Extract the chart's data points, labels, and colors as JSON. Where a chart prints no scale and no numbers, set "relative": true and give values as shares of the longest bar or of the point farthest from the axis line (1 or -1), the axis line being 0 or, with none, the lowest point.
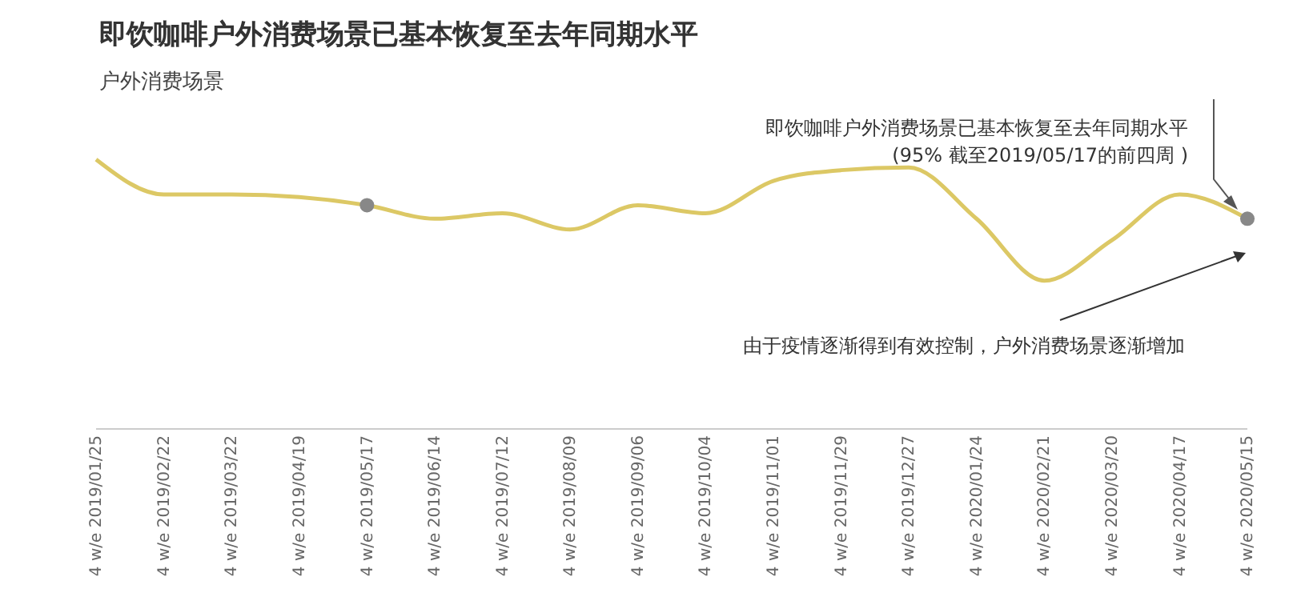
{
  "chart_data": {
    "type": "line",
    "title": "即饮咖啡户外消费场景已基本恢复至去年同期水平",
    "subtitle": "户外消费场景",
    "relative": true,
    "line_style": "solid",
    "categories": [
      "4 w/e 2019/01/25",
      "4 w/e 2019/02/22",
      "4 w/e 2019/03/22",
      "4 w/e 2019/04/19",
      "4 w/e 2019/05/17",
      "4 w/e 2019/06/14",
      "4 w/e 2019/07/12",
      "4 w/e 2019/08/09",
      "4 w/e 2019/09/06",
      "4 w/e 2019/10/04",
      "4 w/e 2019/11/01",
      "4 w/e 2019/11/29",
      "4 w/e 2019/12/27",
      "4 w/e 2020/01/24",
      "4 w/e 2020/02/21",
      "4 w/e 2020/03/20",
      "4 w/e 2020/04/17",
      "4 w/e 2020/05/15"
    ],
    "series": [
      {
        "color": "#dcc865",
        "values": [
          1,
          0.87,
          0.87,
          0.86,
          0.83,
          0.78,
          0.8,
          0.74,
          0.83,
          0.8,
          0.92,
          0.96,
          0.97,
          0.78,
          0.55,
          0.7,
          0.87,
          0.78
        ]
      },
      {
        "type": "scatter",
        "marker": "circle",
        "color": "#888888",
        "x": [
          "4 w/e 2019/05/17",
          "4 w/e 2020/05/15"
        ],
        "values": [
          0.83,
          0.78
        ]
      }
    ],
    "annotations": [
      "即饮咖啡户外消费场景已基本恢复至去年同期水平\n(95% 截至2019/05/17的前四周 )",
      "由于疫情逐渐得到有效控制，户外消费场景逐渐增加"
    ]
  }
}
